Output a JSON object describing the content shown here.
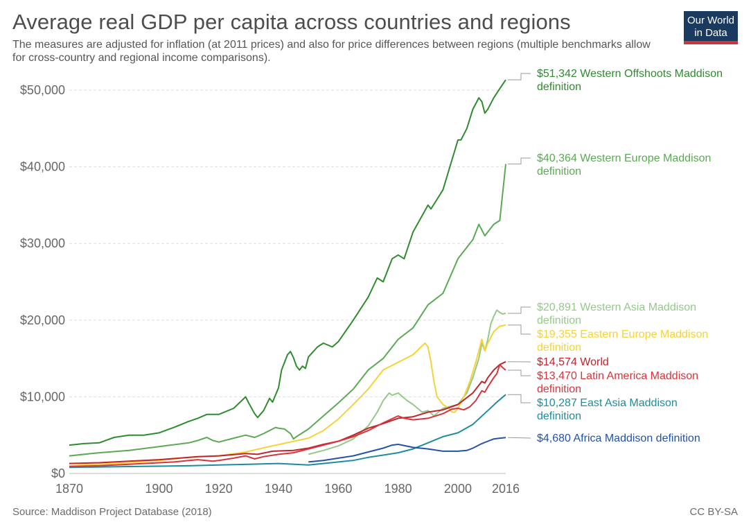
{
  "header": {
    "title": "Average real GDP per capita across countries and regions",
    "subtitle": "The measures are adjusted for inflation (at 2011 prices) and also for price differences between regions (multiple benchmarks allow for cross-country and regional income comparisons)."
  },
  "logo": {
    "line1": "Our World",
    "line2": "in Data"
  },
  "footer": {
    "source": "Source: Maddison Project Database (2018)",
    "license": "CC BY-SA"
  },
  "chart_data": {
    "type": "line",
    "title": "Average real GDP per capita across countries and regions",
    "xlim": [
      1870,
      2016
    ],
    "ylim": [
      0,
      50000
    ],
    "x_ticks": [
      "1870",
      "1900",
      "1920",
      "1940",
      "1960",
      "1980",
      "2000",
      "2016"
    ],
    "y_ticks": [
      "$0",
      "$10,000",
      "$20,000",
      "$30,000",
      "$40,000",
      "$50,000"
    ],
    "grid": "horizontal dashed",
    "series": [
      {
        "name": "Western Offshoots Maddison definition",
        "end_label": "$51,342 Western Offshoots Maddison definition",
        "color": "#2e8b2e",
        "points": [
          [
            1870,
            3700
          ],
          [
            1875,
            3900
          ],
          [
            1880,
            4000
          ],
          [
            1885,
            4700
          ],
          [
            1890,
            5000
          ],
          [
            1895,
            5000
          ],
          [
            1900,
            5300
          ],
          [
            1905,
            6000
          ],
          [
            1910,
            6800
          ],
          [
            1913,
            7200
          ],
          [
            1916,
            7700
          ],
          [
            1920,
            7700
          ],
          [
            1925,
            8500
          ],
          [
            1929,
            10000
          ],
          [
            1930,
            9200
          ],
          [
            1932,
            7800
          ],
          [
            1933,
            7300
          ],
          [
            1935,
            8200
          ],
          [
            1937,
            9800
          ],
          [
            1938,
            9300
          ],
          [
            1940,
            11200
          ],
          [
            1941,
            13500
          ],
          [
            1943,
            15500
          ],
          [
            1944,
            15900
          ],
          [
            1945,
            15100
          ],
          [
            1946,
            14000
          ],
          [
            1947,
            13500
          ],
          [
            1948,
            14000
          ],
          [
            1949,
            13700
          ],
          [
            1950,
            15200
          ],
          [
            1953,
            16500
          ],
          [
            1955,
            17000
          ],
          [
            1958,
            16500
          ],
          [
            1960,
            17200
          ],
          [
            1965,
            20000
          ],
          [
            1970,
            23000
          ],
          [
            1973,
            25500
          ],
          [
            1975,
            25000
          ],
          [
            1978,
            28000
          ],
          [
            1980,
            28500
          ],
          [
            1982,
            28000
          ],
          [
            1985,
            31500
          ],
          [
            1990,
            35000
          ],
          [
            1991,
            34500
          ],
          [
            1995,
            37000
          ],
          [
            2000,
            43500
          ],
          [
            2001,
            43500
          ],
          [
            2003,
            45000
          ],
          [
            2005,
            47500
          ],
          [
            2007,
            49000
          ],
          [
            2008,
            48500
          ],
          [
            2009,
            47000
          ],
          [
            2010,
            47500
          ],
          [
            2012,
            49000
          ],
          [
            2014,
            50200
          ],
          [
            2016,
            51342
          ]
        ]
      },
      {
        "name": "Western Europe Maddison definition",
        "end_label": "$40,364 Western Europe Maddison definition",
        "color": "#5aaa52",
        "points": [
          [
            1870,
            2300
          ],
          [
            1880,
            2700
          ],
          [
            1890,
            3000
          ],
          [
            1900,
            3500
          ],
          [
            1910,
            4000
          ],
          [
            1913,
            4300
          ],
          [
            1916,
            4700
          ],
          [
            1918,
            4300
          ],
          [
            1920,
            4100
          ],
          [
            1925,
            4600
          ],
          [
            1929,
            5000
          ],
          [
            1932,
            4700
          ],
          [
            1935,
            5200
          ],
          [
            1939,
            6000
          ],
          [
            1940,
            5900
          ],
          [
            1942,
            5800
          ],
          [
            1944,
            5200
          ],
          [
            1945,
            4500
          ],
          [
            1946,
            4800
          ],
          [
            1950,
            5800
          ],
          [
            1955,
            7500
          ],
          [
            1960,
            9200
          ],
          [
            1965,
            11000
          ],
          [
            1970,
            13500
          ],
          [
            1975,
            15000
          ],
          [
            1980,
            17500
          ],
          [
            1985,
            19000
          ],
          [
            1990,
            22000
          ],
          [
            1995,
            23500
          ],
          [
            2000,
            28000
          ],
          [
            2005,
            30500
          ],
          [
            2007,
            32500
          ],
          [
            2009,
            31000
          ],
          [
            2010,
            31500
          ],
          [
            2012,
            32500
          ],
          [
            2014,
            33000
          ],
          [
            2016,
            40364
          ]
        ]
      },
      {
        "name": "Western Asia Maddison definition",
        "end_label": "$20,891 Western Asia Maddison definition",
        "color": "#94c98a",
        "points": [
          [
            1950,
            2500
          ],
          [
            1955,
            3000
          ],
          [
            1960,
            3600
          ],
          [
            1965,
            4500
          ],
          [
            1970,
            6200
          ],
          [
            1973,
            8000
          ],
          [
            1975,
            9500
          ],
          [
            1977,
            10500
          ],
          [
            1978,
            10200
          ],
          [
            1980,
            10500
          ],
          [
            1983,
            9500
          ],
          [
            1985,
            9000
          ],
          [
            1988,
            8000
          ],
          [
            1990,
            8200
          ],
          [
            1992,
            7500
          ],
          [
            1995,
            8500
          ],
          [
            1998,
            8800
          ],
          [
            2000,
            9000
          ],
          [
            2003,
            10500
          ],
          [
            2005,
            12500
          ],
          [
            2007,
            15000
          ],
          [
            2008,
            17000
          ],
          [
            2009,
            16000
          ],
          [
            2010,
            17500
          ],
          [
            2011,
            19500
          ],
          [
            2012,
            20500
          ],
          [
            2013,
            21300
          ],
          [
            2014,
            21000
          ],
          [
            2015,
            20800
          ],
          [
            2016,
            20891
          ]
        ]
      },
      {
        "name": "Eastern Europe Maddison definition",
        "end_label": "$19,355 Eastern Europe Maddison definition",
        "color": "#f5d336",
        "points": [
          [
            1870,
            1000
          ],
          [
            1880,
            1200
          ],
          [
            1890,
            1400
          ],
          [
            1900,
            1700
          ],
          [
            1910,
            2100
          ],
          [
            1920,
            2300
          ],
          [
            1929,
            2800
          ],
          [
            1938,
            3600
          ],
          [
            1950,
            4600
          ],
          [
            1955,
            5600
          ],
          [
            1960,
            7100
          ],
          [
            1965,
            9000
          ],
          [
            1970,
            11000
          ],
          [
            1975,
            13500
          ],
          [
            1980,
            14500
          ],
          [
            1985,
            15500
          ],
          [
            1989,
            17000
          ],
          [
            1990,
            16500
          ],
          [
            1991,
            14500
          ],
          [
            1992,
            12000
          ],
          [
            1993,
            10000
          ],
          [
            1995,
            9000
          ],
          [
            1997,
            8500
          ],
          [
            1998,
            8000
          ],
          [
            1999,
            8000
          ],
          [
            2000,
            8500
          ],
          [
            2002,
            10000
          ],
          [
            2004,
            12000
          ],
          [
            2006,
            14500
          ],
          [
            2008,
            17500
          ],
          [
            2009,
            16000
          ],
          [
            2010,
            17000
          ],
          [
            2012,
            18500
          ],
          [
            2014,
            19200
          ],
          [
            2016,
            19355
          ]
        ]
      },
      {
        "name": "World",
        "end_label": "$14,574 World",
        "color": "#c0242c",
        "points": [
          [
            1870,
            1300
          ],
          [
            1880,
            1400
          ],
          [
            1890,
            1600
          ],
          [
            1900,
            1800
          ],
          [
            1910,
            2100
          ],
          [
            1913,
            2200
          ],
          [
            1920,
            2300
          ],
          [
            1929,
            2600
          ],
          [
            1933,
            2500
          ],
          [
            1938,
            2900
          ],
          [
            1945,
            3000
          ],
          [
            1950,
            3300
          ],
          [
            1955,
            3800
          ],
          [
            1960,
            4200
          ],
          [
            1965,
            5000
          ],
          [
            1970,
            5900
          ],
          [
            1975,
            6500
          ],
          [
            1980,
            7200
          ],
          [
            1985,
            7400
          ],
          [
            1990,
            8000
          ],
          [
            1995,
            8300
          ],
          [
            2000,
            9000
          ],
          [
            2005,
            10500
          ],
          [
            2008,
            12000
          ],
          [
            2009,
            11800
          ],
          [
            2010,
            12500
          ],
          [
            2012,
            13500
          ],
          [
            2014,
            14200
          ],
          [
            2016,
            14574
          ]
        ]
      },
      {
        "name": "Latin America Maddison definition",
        "end_label": "$13,470 Latin America Maddison definition",
        "color": "#d9333b",
        "points": [
          [
            1870,
            900
          ],
          [
            1880,
            1000
          ],
          [
            1890,
            1200
          ],
          [
            1900,
            1400
          ],
          [
            1905,
            1500
          ],
          [
            1910,
            1700
          ],
          [
            1913,
            1800
          ],
          [
            1918,
            1600
          ],
          [
            1920,
            1700
          ],
          [
            1925,
            2000
          ],
          [
            1929,
            2300
          ],
          [
            1932,
            1900
          ],
          [
            1935,
            2200
          ],
          [
            1940,
            2500
          ],
          [
            1945,
            2700
          ],
          [
            1950,
            3200
          ],
          [
            1955,
            3700
          ],
          [
            1960,
            4200
          ],
          [
            1965,
            4800
          ],
          [
            1970,
            5600
          ],
          [
            1975,
            6600
          ],
          [
            1980,
            7500
          ],
          [
            1982,
            7200
          ],
          [
            1985,
            7000
          ],
          [
            1990,
            7200
          ],
          [
            1995,
            7800
          ],
          [
            1998,
            8400
          ],
          [
            2000,
            8500
          ],
          [
            2002,
            8300
          ],
          [
            2004,
            8700
          ],
          [
            2006,
            9500
          ],
          [
            2008,
            10800
          ],
          [
            2009,
            10600
          ],
          [
            2010,
            11300
          ],
          [
            2012,
            12500
          ],
          [
            2013,
            13000
          ],
          [
            2014,
            14200
          ],
          [
            2015,
            13800
          ],
          [
            2016,
            13470
          ]
        ]
      },
      {
        "name": "East Asia Maddison definition",
        "end_label": "$10,287 East Asia Maddison definition",
        "color": "#1e8c9e",
        "points": [
          [
            1870,
            800
          ],
          [
            1880,
            850
          ],
          [
            1890,
            900
          ],
          [
            1900,
            950
          ],
          [
            1910,
            1000
          ],
          [
            1920,
            1100
          ],
          [
            1930,
            1200
          ],
          [
            1940,
            1300
          ],
          [
            1950,
            1100
          ],
          [
            1955,
            1300
          ],
          [
            1960,
            1500
          ],
          [
            1965,
            1700
          ],
          [
            1970,
            2100
          ],
          [
            1975,
            2400
          ],
          [
            1980,
            2700
          ],
          [
            1985,
            3200
          ],
          [
            1990,
            4000
          ],
          [
            1995,
            4800
          ],
          [
            2000,
            5300
          ],
          [
            2005,
            6400
          ],
          [
            2010,
            8200
          ],
          [
            2013,
            9300
          ],
          [
            2016,
            10287
          ]
        ]
      },
      {
        "name": "Africa Maddison definition",
        "end_label": "$4,680 Africa Maddison definition",
        "color": "#2452a8",
        "points": [
          [
            1950,
            1500
          ],
          [
            1955,
            1700
          ],
          [
            1960,
            2000
          ],
          [
            1965,
            2300
          ],
          [
            1970,
            2800
          ],
          [
            1975,
            3300
          ],
          [
            1978,
            3700
          ],
          [
            1980,
            3800
          ],
          [
            1985,
            3400
          ],
          [
            1990,
            3200
          ],
          [
            1995,
            2900
          ],
          [
            2000,
            2900
          ],
          [
            2003,
            3000
          ],
          [
            2005,
            3300
          ],
          [
            2008,
            3900
          ],
          [
            2010,
            4200
          ],
          [
            2012,
            4500
          ],
          [
            2014,
            4600
          ],
          [
            2016,
            4680
          ]
        ]
      }
    ]
  }
}
